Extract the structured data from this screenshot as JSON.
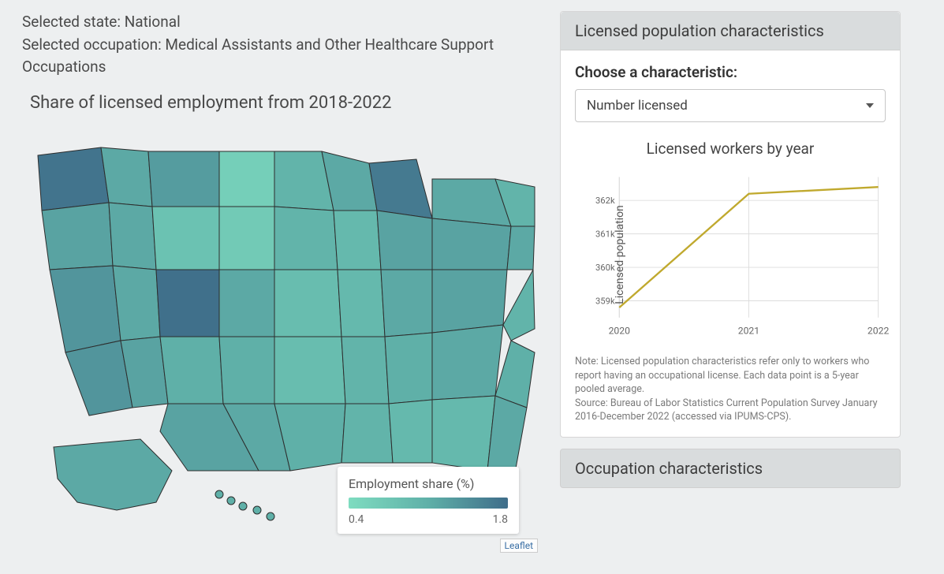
{
  "header": {
    "selected_state_label": "Selected state:",
    "selected_state_value": "National",
    "selected_occupation_label": "Selected occupation:",
    "selected_occupation_value": "Medical Assistants and Other Healthcare Support Occupations"
  },
  "map": {
    "title": "Share of licensed employment from 2018-2022",
    "legend_title": "Employment share (%)",
    "legend_min": "0.4",
    "legend_max": "1.8",
    "color_min": "#7edcc0",
    "color_mid": "#5fb0a8",
    "color_max": "#3f6d8a",
    "stroke": "#2d2d2d",
    "leaflet_label": "Leaflet"
  },
  "right_panel": {
    "title": "Licensed population characteristics",
    "choose_label": "Choose a characteristic:",
    "select_value": "Number licensed",
    "chart": {
      "title": "Licensed workers by year",
      "ylabel": "Licensed population",
      "x_categories": [
        "2020",
        "2021",
        "2022"
      ],
      "y_values": [
        358800,
        362200,
        362400
      ],
      "y_ticks": [
        "359k",
        "360k",
        "361k",
        "362k"
      ],
      "y_tick_vals": [
        359000,
        360000,
        361000,
        362000
      ],
      "ylim": [
        358500,
        362700
      ],
      "line_color": "#c0a92e",
      "line_width": 2.5,
      "grid_color": "#dddddd",
      "axis_color": "#cccccc",
      "background": "#ffffff"
    },
    "note_lines": [
      "Note: Licensed population characteristics refer only to workers who report having an occupational license. Each data point is a 5-year pooled average.",
      "Source: Bureau of Labor Statistics Current Population Survey January 2016-December 2022 (accessed via IPUMS-CPS)."
    ]
  },
  "collapsed_panel": {
    "title": "Occupation characteristics"
  }
}
